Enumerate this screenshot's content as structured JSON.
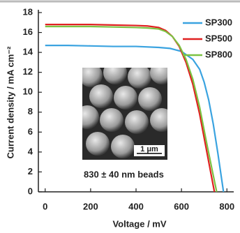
{
  "chart_data": {
    "type": "line",
    "xlabel": "Voltage / mV",
    "ylabel": "Current density / mA cm⁻²",
    "annotation": "830 ± 40 nm beads",
    "scale_bar_label": "1 μm",
    "xlim": [
      -30,
      830
    ],
    "xticks": [
      0,
      200,
      400,
      600,
      800
    ],
    "ylim": [
      0,
      18
    ],
    "yticks": [
      0,
      2,
      4,
      6,
      8,
      10,
      12,
      14,
      16,
      18
    ],
    "legend": "upper right",
    "series": [
      {
        "name": "SP300",
        "color": "#3aa3e0",
        "x": [
          0,
          100,
          200,
          300,
          400,
          500,
          550,
          600,
          650,
          680,
          700,
          720,
          740,
          760,
          785
        ],
        "values": [
          14.7,
          14.7,
          14.65,
          14.6,
          14.6,
          14.5,
          14.4,
          14.1,
          13.3,
          12.3,
          11.0,
          9.2,
          6.8,
          3.9,
          0
        ]
      },
      {
        "name": "SP500",
        "color": "#e02020",
        "x": [
          0,
          100,
          200,
          300,
          400,
          450,
          500,
          530,
          560,
          590,
          620,
          650,
          680,
          710,
          730,
          745
        ],
        "values": [
          16.8,
          16.8,
          16.8,
          16.75,
          16.7,
          16.65,
          16.5,
          16.2,
          15.6,
          14.6,
          13.0,
          10.8,
          7.8,
          4.2,
          1.8,
          0
        ]
      },
      {
        "name": "SP800",
        "color": "#7cc242",
        "x": [
          0,
          100,
          200,
          300,
          400,
          450,
          500,
          530,
          560,
          590,
          620,
          650,
          680,
          710,
          735,
          755
        ],
        "values": [
          16.6,
          16.6,
          16.6,
          16.55,
          16.5,
          16.45,
          16.35,
          16.1,
          15.6,
          14.7,
          13.3,
          11.3,
          8.5,
          5.0,
          2.2,
          0
        ]
      }
    ]
  }
}
